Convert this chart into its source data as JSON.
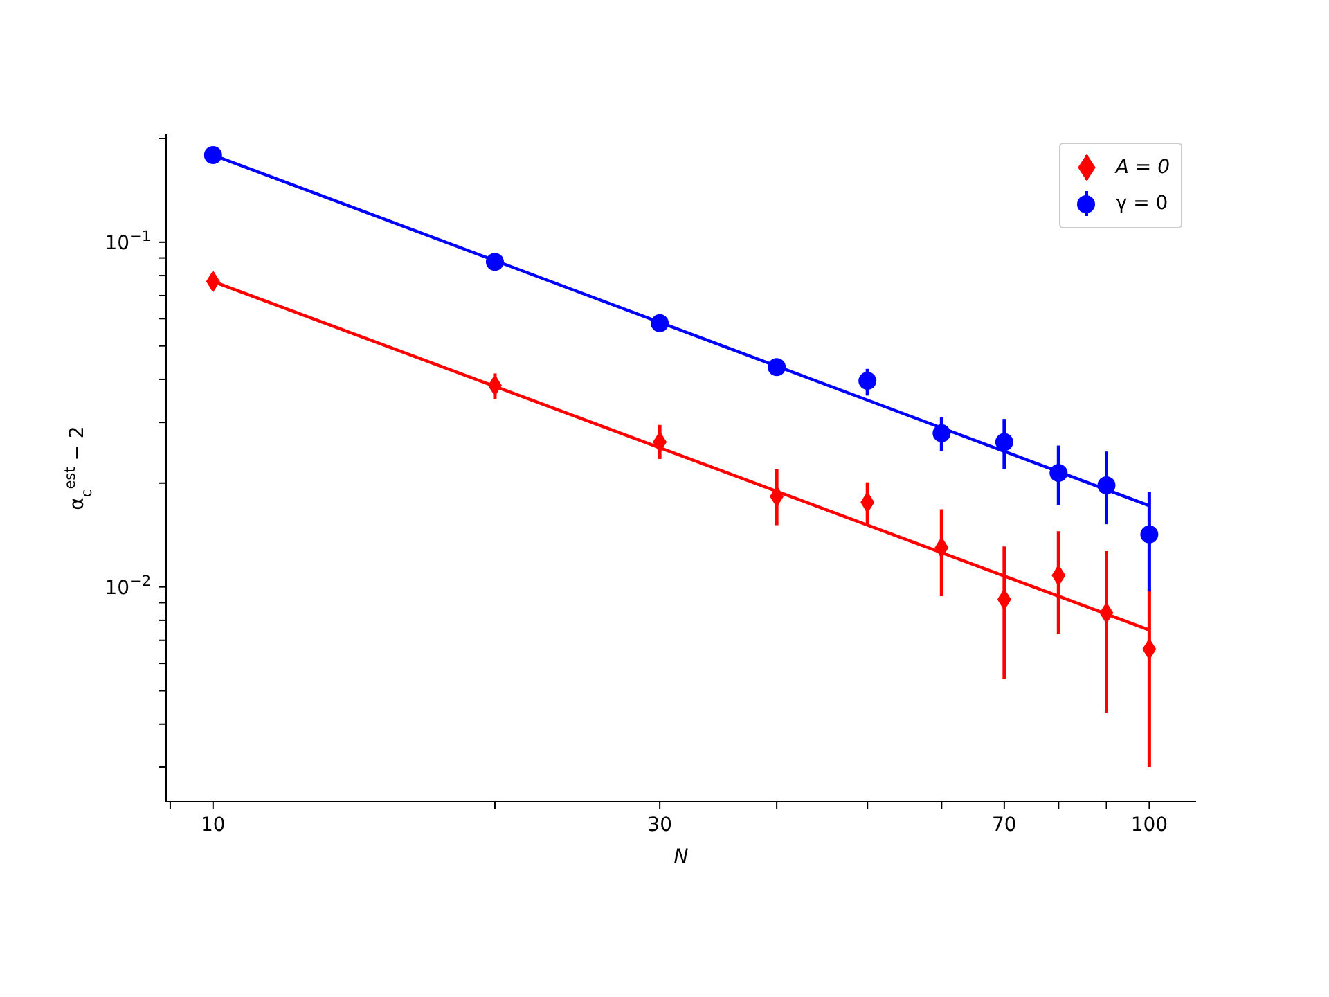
{
  "chart_data": {
    "type": "scatter",
    "xlabel": "N",
    "ylabel": "α$_{c}$$^{est}$ − 2",
    "log": "xy",
    "xlim": [
      8.91,
      112.2
    ],
    "ylim": [
      0.00238,
      0.2056
    ],
    "xticks": [
      {
        "value": 9,
        "label": null
      },
      10,
      {
        "value": 20,
        "label": null
      },
      30,
      {
        "value": 40,
        "label": null
      },
      {
        "value": 50,
        "label": null
      },
      {
        "value": 60,
        "label": null
      },
      70,
      {
        "value": 80,
        "label": null
      },
      {
        "value": 90,
        "label": null
      },
      100
    ],
    "yticks": [
      {
        "value": 0.003,
        "label": null
      },
      {
        "value": 0.004,
        "label": null
      },
      {
        "value": 0.005,
        "label": null
      },
      {
        "value": 0.006,
        "label": null
      },
      {
        "value": 0.007,
        "label": null
      },
      {
        "value": 0.008,
        "label": null
      },
      {
        "value": 0.009,
        "label": null
      },
      {
        "value": 0.01,
        "label": "10$^{−2}$"
      },
      {
        "value": 0.02,
        "label": null
      },
      {
        "value": 0.03,
        "label": null
      },
      {
        "value": 0.04,
        "label": null
      },
      {
        "value": 0.05,
        "label": null
      },
      {
        "value": 0.06,
        "label": null
      },
      {
        "value": 0.07,
        "label": null
      },
      {
        "value": 0.08,
        "label": null
      },
      {
        "value": 0.09,
        "label": null
      },
      {
        "value": 0.1,
        "label": "10$^{−1}$"
      },
      {
        "value": 0.2,
        "label": null
      }
    ],
    "grid": false,
    "legend": "top right",
    "series": [
      {
        "name": "A = 0",
        "marker": "diamond",
        "color": "#ff0000",
        "x": [
          10,
          20,
          30,
          40,
          50,
          60,
          70,
          80,
          90,
          100
        ],
        "values": [
          0.0769,
          0.0384,
          0.0263,
          0.0183,
          0.0176,
          0.013,
          0.0092,
          0.0108,
          0.0084,
          0.0066
        ],
        "errors": [
          [
            0.0727,
            0.0815
          ],
          [
            0.035,
            0.0416
          ],
          [
            0.0235,
            0.0295
          ],
          [
            0.0151,
            0.022
          ],
          [
            0.0152,
            0.0201
          ],
          [
            0.0094,
            0.0168
          ],
          [
            0.0054,
            0.0131
          ],
          [
            0.0073,
            0.0145
          ],
          [
            0.0043,
            0.0127
          ],
          [
            0.003,
            0.0099
          ]
        ]
      },
      {
        "name": "γ = 0",
        "marker": "circle",
        "color": "#0000ff",
        "x": [
          10,
          20,
          30,
          40,
          50,
          60,
          70,
          80,
          90,
          100
        ],
        "values": [
          0.179,
          0.0877,
          0.0582,
          0.0434,
          0.0396,
          0.0279,
          0.0263,
          0.0214,
          0.0197,
          0.0142
        ],
        "errors": [
          null,
          null,
          null,
          [
            0.041,
            0.0457
          ],
          [
            0.0359,
            0.0429
          ],
          [
            0.0248,
            0.031
          ],
          [
            0.022,
            0.0307
          ],
          [
            0.0173,
            0.0257
          ],
          [
            0.0152,
            0.0247
          ],
          [
            0.0097,
            0.0189
          ]
        ]
      },
      {
        "type": "line",
        "marker": "none",
        "color": "#ff0000",
        "x": [
          10,
          100
        ],
        "values": [
          0.0769,
          0.0075
        ]
      },
      {
        "type": "line",
        "marker": "none",
        "color": "#0000ff",
        "x": [
          10,
          100
        ],
        "values": [
          0.179,
          0.0172
        ]
      }
    ]
  }
}
